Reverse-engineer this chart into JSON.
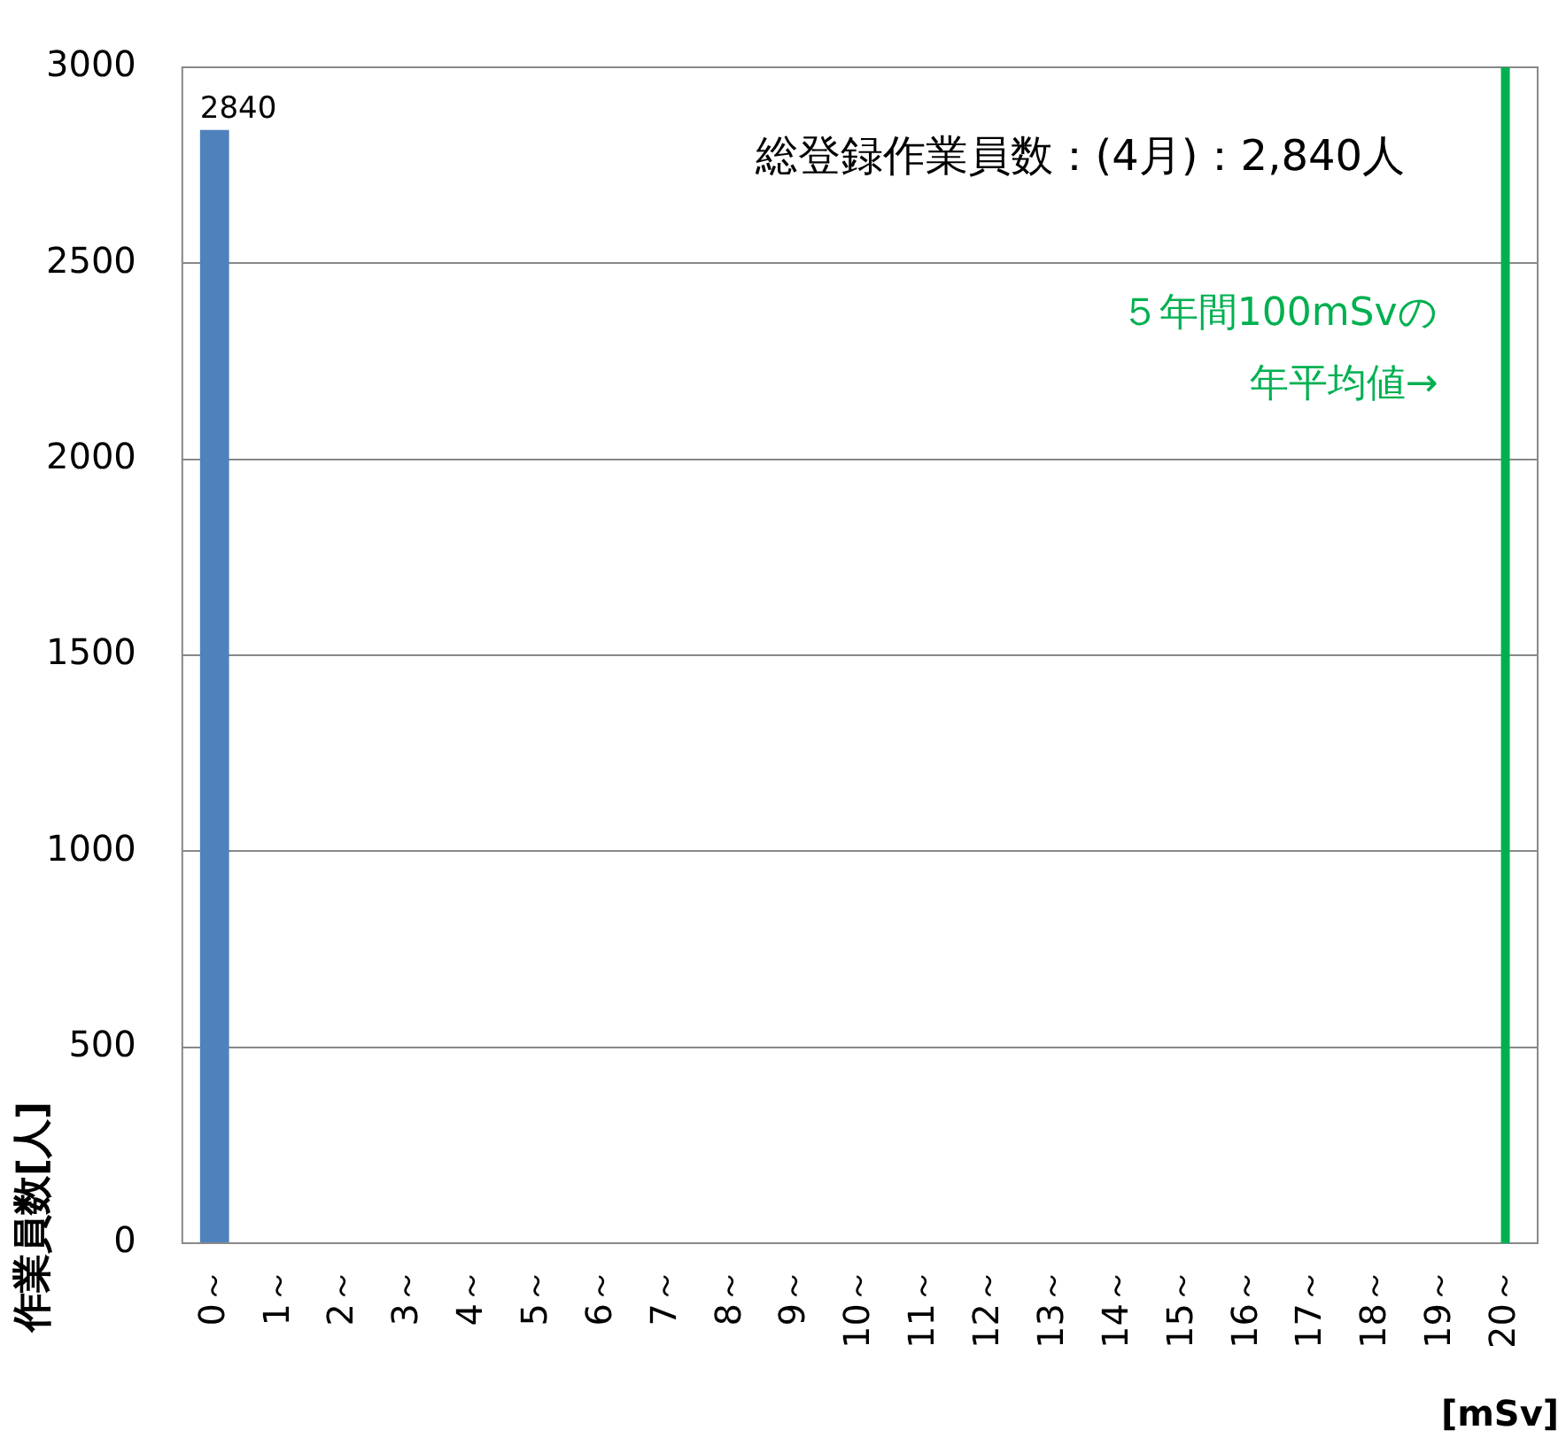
{
  "chart_data": {
    "type": "bar",
    "ylabel": "作業員数[人]",
    "xlabel": "[mSv]",
    "categories": [
      "0～",
      "1～",
      "2～",
      "3～",
      "4～",
      "5～",
      "6～",
      "7～",
      "8～",
      "9～",
      "10～",
      "11～",
      "12～",
      "13～",
      "14～",
      "15～",
      "16～",
      "17～",
      "18～",
      "19～",
      "20～"
    ],
    "values": [
      2840,
      0,
      0,
      0,
      0,
      0,
      0,
      0,
      0,
      0,
      0,
      0,
      0,
      0,
      0,
      0,
      0,
      0,
      0,
      0,
      0
    ],
    "value_labels": [
      "2840",
      null,
      null,
      null,
      null,
      null,
      null,
      null,
      null,
      null,
      null,
      null,
      null,
      null,
      null,
      null,
      null,
      null,
      null,
      null,
      null
    ],
    "color": "#4f81bd",
    "ylim": [
      0,
      3000
    ],
    "yticks": [
      0,
      500,
      1000,
      1500,
      2000,
      2500,
      3000
    ],
    "grid": "y",
    "ref_lines": [
      {
        "axis": "x",
        "value": "20～",
        "label": "５年間100mSvの年平均値→",
        "color": "#00b050"
      }
    ],
    "annotations": [
      "総登録作業員数：(4月)：2,840人"
    ]
  }
}
